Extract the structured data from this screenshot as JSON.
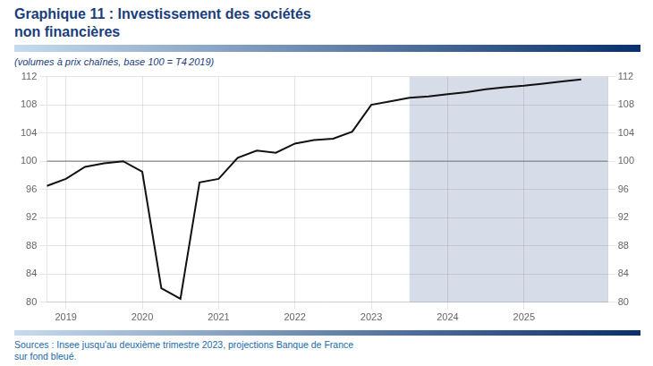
{
  "chart_data": {
    "type": "line",
    "title": [
      "Graphique 11 : Investissement des sociétés",
      "non financières"
    ],
    "subtitle": "(volumes à prix chaînés, base 100 = T4 2019)",
    "source": "Sources : Insee jusqu'au deuxième trimestre 2023, projections Banque de France\nsur fond bleué.",
    "title_color": "#1a3d7c",
    "source_color": "#1a6aab",
    "color": "#111111",
    "x": [
      2018.75,
      2019.0,
      2019.25,
      2019.5,
      2019.75,
      2020.0,
      2020.25,
      2020.5,
      2020.75,
      2021.0,
      2021.25,
      2021.5,
      2021.75,
      2022.0,
      2022.25,
      2022.5,
      2022.75,
      2023.0,
      2023.25,
      2023.5,
      2023.75,
      2024.0,
      2024.25,
      2024.5,
      2024.75,
      2025.0,
      2025.25,
      2025.5,
      2025.75
    ],
    "values": [
      96.5,
      97.5,
      99.2,
      99.7,
      100.0,
      98.5,
      82.0,
      80.5,
      97.0,
      97.5,
      100.5,
      101.5,
      101.2,
      102.5,
      103.0,
      103.2,
      104.2,
      108.0,
      108.5,
      109.0,
      109.2,
      109.5,
      109.8,
      110.2,
      110.5,
      110.7,
      111.0,
      111.3,
      111.6
    ],
    "xlim": [
      2018.75,
      2026.1
    ],
    "xticks": [
      2019,
      2020,
      2021,
      2022,
      2023,
      2024,
      2025
    ],
    "ylim": [
      80,
      112
    ],
    "yticks": [
      80,
      84,
      88,
      92,
      96,
      100,
      104,
      108,
      112
    ],
    "y2lim": [
      80,
      112
    ],
    "y2ticks": [
      80,
      84,
      88,
      92,
      96,
      100,
      104,
      108,
      112
    ],
    "grid": true,
    "shaded_x": [
      2023.5,
      2026.1
    ],
    "shade_color": "#d6dce8",
    "hline_y": 100,
    "hline_color": "#888888"
  }
}
